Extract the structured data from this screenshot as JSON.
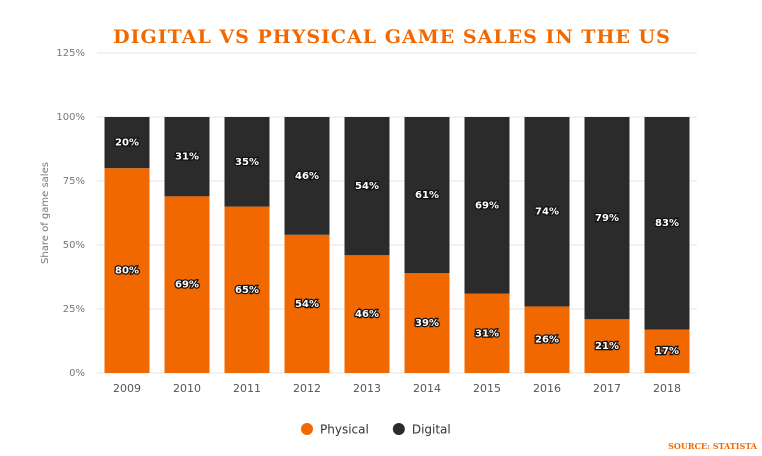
{
  "chart_data": {
    "type": "stacked_bar",
    "title": "DIGITAL VS PHYSICAL GAME SALES IN THE US",
    "y_label": "Share of game sales",
    "source": "SOURCE: STATISTA",
    "categories": [
      "2009",
      "2010",
      "2011",
      "2012",
      "2013",
      "2014",
      "2015",
      "2016",
      "2017",
      "2018"
    ],
    "series": [
      {
        "name": "Physical",
        "color": "#f26800",
        "values": [
          80,
          69,
          65,
          54,
          46,
          39,
          31,
          26,
          21,
          17
        ],
        "value_labels": [
          "80%",
          "69%",
          "65%",
          "54%",
          "46%",
          "39%",
          "31%",
          "26%",
          "21%",
          "17%"
        ]
      },
      {
        "name": "Digital",
        "color": "#2b2b2b",
        "values": [
          20,
          31,
          35,
          46,
          54,
          61,
          69,
          74,
          79,
          83
        ],
        "value_labels": [
          "20%",
          "31%",
          "35%",
          "46%",
          "54%",
          "61%",
          "69%",
          "74%",
          "79%",
          "83%"
        ]
      }
    ],
    "ylim": [
      0,
      125
    ],
    "yticks": [
      {
        "value": 0,
        "label": "0%"
      },
      {
        "value": 25,
        "label": "25%"
      },
      {
        "value": 50,
        "label": "50%"
      },
      {
        "value": 75,
        "label": "75%"
      },
      {
        "value": 100,
        "label": "100%"
      },
      {
        "value": 125,
        "label": "125%"
      }
    ],
    "grid": true,
    "legend": "bottom"
  }
}
